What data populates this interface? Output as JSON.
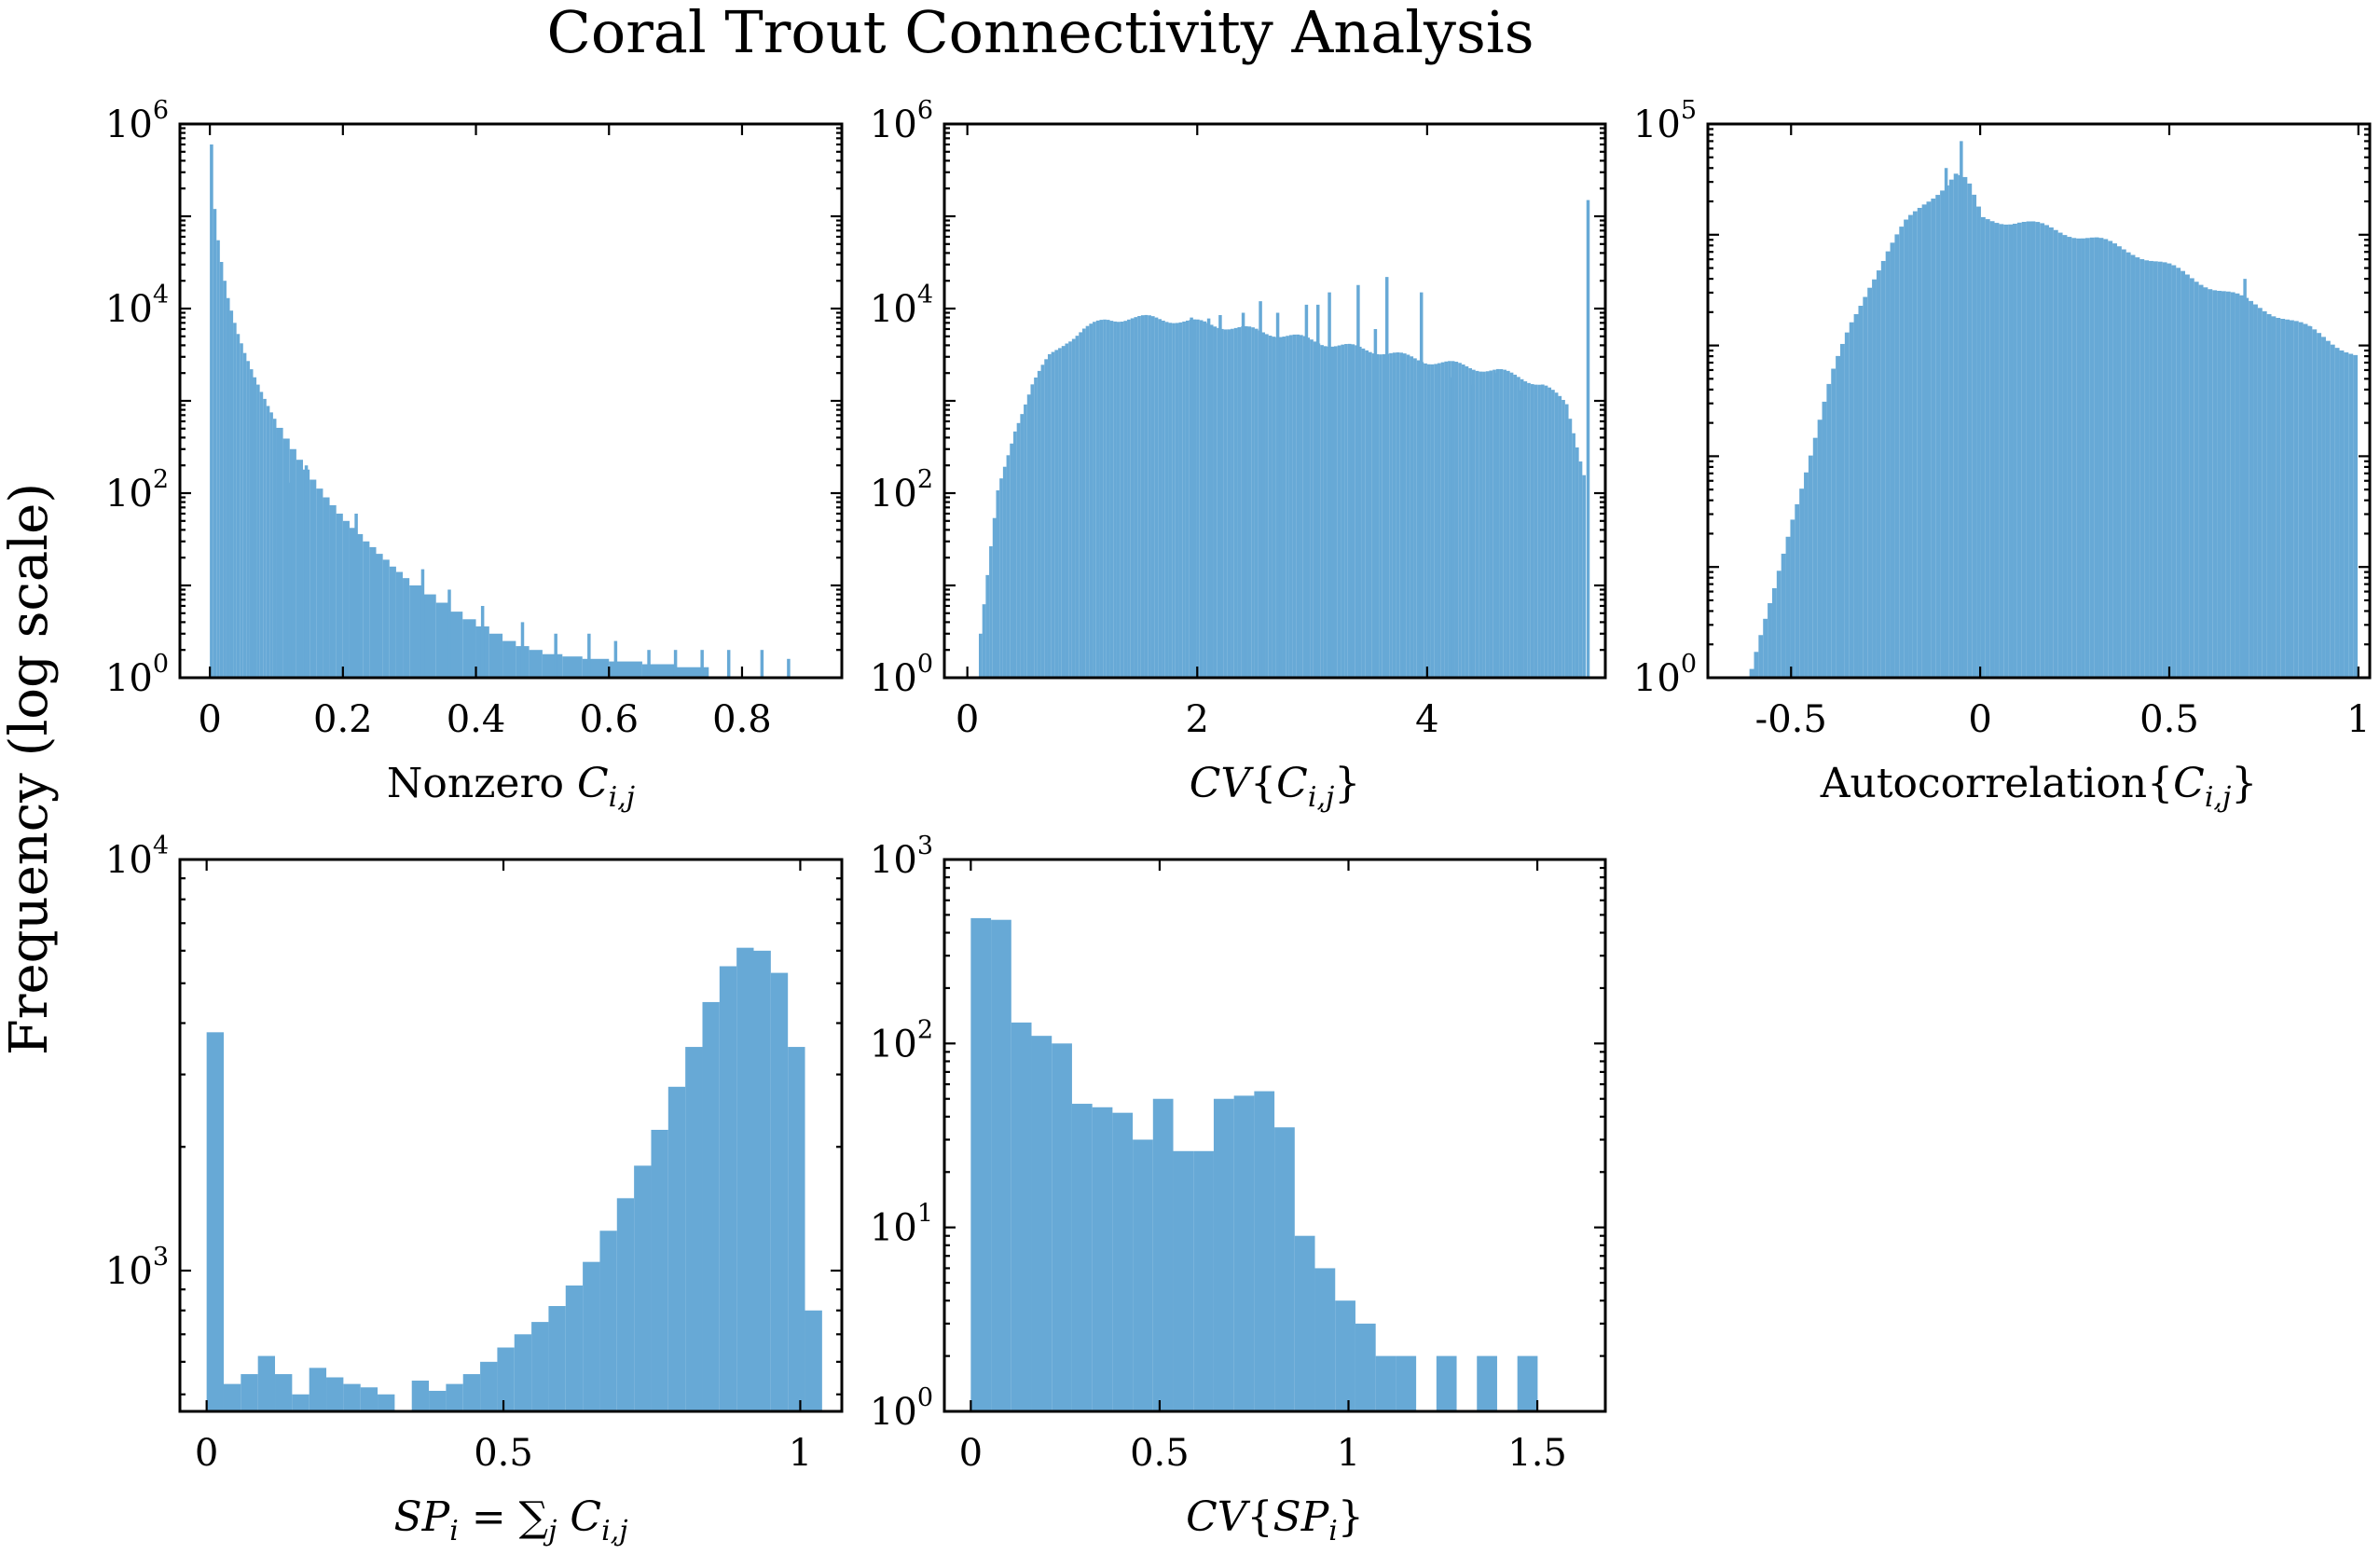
{
  "figure": {
    "title": "Coral Trout Connectivity Analysis",
    "ylabel": "Frequency (log scale)",
    "bar_color": "#67a9d6"
  },
  "chart_data": [
    {
      "id": "nonzero",
      "type": "bar",
      "xlabel": "Nonzero C_{i,j}",
      "xlabel_parts": [
        {
          "t": "Nonzero ",
          "i": false
        },
        {
          "t": "C",
          "i": true
        },
        {
          "t": "i,j",
          "i": true,
          "sub": true
        }
      ],
      "yscale": "log",
      "xlim": [
        -0.045,
        0.95
      ],
      "ylim_exp": [
        0,
        6
      ],
      "xticks": [
        0,
        0.2,
        0.4,
        0.6,
        0.8
      ],
      "xtick_labels": [
        "0",
        "0.2",
        "0.4",
        "0.6",
        "0.8"
      ],
      "yticks": [
        {
          "exp": 0,
          "base": "10",
          "sup": "0"
        },
        {
          "exp": 2,
          "base": "10",
          "sup": "2"
        },
        {
          "exp": 4,
          "base": "10",
          "sup": "4"
        },
        {
          "exp": 6,
          "base": "10",
          "sup": "6"
        }
      ],
      "bars": [
        [
          0.0,
          0.005,
          600000
        ],
        [
          0.005,
          0.01,
          120000
        ],
        [
          0.01,
          0.015,
          55000
        ],
        [
          0.015,
          0.02,
          32000
        ],
        [
          0.02,
          0.025,
          20000
        ],
        [
          0.025,
          0.03,
          13000
        ],
        [
          0.03,
          0.035,
          9500
        ],
        [
          0.035,
          0.04,
          7000
        ],
        [
          0.04,
          0.045,
          5300
        ],
        [
          0.045,
          0.05,
          4200
        ],
        [
          0.05,
          0.055,
          3300
        ],
        [
          0.055,
          0.06,
          2700
        ],
        [
          0.06,
          0.065,
          2200
        ],
        [
          0.065,
          0.07,
          1800
        ],
        [
          0.07,
          0.075,
          1500
        ],
        [
          0.075,
          0.08,
          1250
        ],
        [
          0.08,
          0.085,
          1050
        ],
        [
          0.085,
          0.09,
          880
        ],
        [
          0.09,
          0.095,
          750
        ],
        [
          0.095,
          0.1,
          640
        ],
        [
          0.1,
          0.11,
          510
        ],
        [
          0.11,
          0.12,
          390
        ],
        [
          0.12,
          0.13,
          300
        ],
        [
          0.13,
          0.14,
          230
        ],
        [
          0.14,
          0.15,
          180
        ],
        [
          0.15,
          0.16,
          140
        ],
        [
          0.16,
          0.17,
          112
        ],
        [
          0.17,
          0.18,
          90
        ],
        [
          0.18,
          0.19,
          74
        ],
        [
          0.19,
          0.2,
          60
        ],
        [
          0.2,
          0.21,
          50
        ],
        [
          0.21,
          0.22,
          42
        ],
        [
          0.22,
          0.23,
          36
        ],
        [
          0.23,
          0.24,
          30
        ],
        [
          0.24,
          0.25,
          26
        ],
        [
          0.25,
          0.26,
          22
        ],
        [
          0.26,
          0.27,
          19
        ],
        [
          0.27,
          0.28,
          16
        ],
        [
          0.28,
          0.29,
          14
        ],
        [
          0.29,
          0.3,
          12
        ],
        [
          0.3,
          0.32,
          10
        ],
        [
          0.32,
          0.34,
          8
        ],
        [
          0.34,
          0.36,
          6.5
        ],
        [
          0.36,
          0.38,
          5.2
        ],
        [
          0.38,
          0.4,
          4.3
        ],
        [
          0.4,
          0.42,
          3.6
        ],
        [
          0.42,
          0.44,
          3.0
        ],
        [
          0.44,
          0.46,
          2.5
        ],
        [
          0.46,
          0.48,
          2.2
        ],
        [
          0.48,
          0.5,
          2.0
        ],
        [
          0.5,
          0.53,
          1.8
        ],
        [
          0.53,
          0.56,
          1.7
        ],
        [
          0.56,
          0.6,
          1.6
        ],
        [
          0.6,
          0.65,
          1.5
        ],
        [
          0.65,
          0.7,
          1.4
        ],
        [
          0.7,
          0.75,
          1.3
        ]
      ],
      "spikes": [
        [
          0.145,
          200
        ],
        [
          0.12,
          130
        ],
        [
          0.22,
          60
        ],
        [
          0.32,
          15
        ],
        [
          0.36,
          9
        ],
        [
          0.41,
          6
        ],
        [
          0.47,
          4
        ],
        [
          0.52,
          3
        ],
        [
          0.57,
          3
        ],
        [
          0.61,
          2.5
        ],
        [
          0.66,
          2
        ],
        [
          0.7,
          2
        ],
        [
          0.74,
          2
        ],
        [
          0.78,
          2
        ],
        [
          0.83,
          2
        ],
        [
          0.87,
          1.6
        ]
      ]
    },
    {
      "id": "cv_cij",
      "type": "bar",
      "xlabel": "CV{C_{i,j}}",
      "xlabel_parts": [
        {
          "t": "CV",
          "i": true
        },
        {
          "t": "{",
          "i": false
        },
        {
          "t": "C",
          "i": true
        },
        {
          "t": "i,j",
          "i": true,
          "sub": true
        },
        {
          "t": "}",
          "i": false
        }
      ],
      "yscale": "log",
      "xlim": [
        -0.2,
        5.55
      ],
      "ylim_exp": [
        0,
        6
      ],
      "xticks": [
        0,
        2,
        4
      ],
      "xtick_labels": [
        "0",
        "2",
        "4"
      ],
      "yticks": [
        {
          "exp": 0,
          "base": "10",
          "sup": "0"
        },
        {
          "exp": 2,
          "base": "10",
          "sup": "2"
        },
        {
          "exp": 4,
          "base": "10",
          "sup": "4"
        },
        {
          "exp": 6,
          "base": "10",
          "sup": "6"
        }
      ],
      "bar_width": 0.03,
      "points": [
        [
          0.1,
          3
        ],
        [
          0.25,
          100
        ],
        [
          0.4,
          500
        ],
        [
          0.55,
          1500
        ],
        [
          0.7,
          3000
        ],
        [
          0.85,
          4500
        ],
        [
          1.0,
          6000
        ],
        [
          1.2,
          7500
        ],
        [
          1.4,
          8000
        ],
        [
          1.6,
          7800
        ],
        [
          1.8,
          7500
        ],
        [
          2.0,
          7000
        ],
        [
          2.2,
          6500
        ],
        [
          2.4,
          6000
        ],
        [
          2.6,
          5500
        ],
        [
          2.8,
          5000
        ],
        [
          3.0,
          4500
        ],
        [
          3.2,
          4000
        ],
        [
          3.4,
          3700
        ],
        [
          3.6,
          3400
        ],
        [
          3.8,
          3000
        ],
        [
          4.0,
          2700
        ],
        [
          4.2,
          2500
        ],
        [
          4.4,
          2300
        ],
        [
          4.6,
          2100
        ],
        [
          4.8,
          1800
        ],
        [
          5.0,
          1500
        ],
        [
          5.2,
          900
        ],
        [
          5.3,
          300
        ],
        [
          5.38,
          120
        ]
      ],
      "spikes": [
        [
          5.4,
          150000
        ],
        [
          4.8,
          1300
        ],
        [
          4.6,
          2000
        ],
        [
          4.2,
          1800
        ],
        [
          3.8,
          3000
        ],
        [
          3.65,
          22000
        ],
        [
          3.4,
          18000
        ],
        [
          3.95,
          15000
        ],
        [
          3.15,
          15000
        ],
        [
          3.05,
          11000
        ],
        [
          2.95,
          11000
        ],
        [
          2.55,
          12000
        ],
        [
          2.7,
          9000
        ],
        [
          2.4,
          9000
        ],
        [
          2.2,
          8500
        ],
        [
          2.1,
          7800
        ],
        [
          1.95,
          8000
        ],
        [
          4.4,
          1500
        ],
        [
          3.55,
          6000
        ]
      ]
    },
    {
      "id": "autocorr",
      "type": "bar",
      "xlabel": "Autocorrelation{C_{i,j}}",
      "xlabel_parts": [
        {
          "t": "Autocorrelation{",
          "i": false
        },
        {
          "t": "C",
          "i": true
        },
        {
          "t": "i,j",
          "i": true,
          "sub": true
        },
        {
          "t": "}",
          "i": false
        }
      ],
      "yscale": "log",
      "xlim": [
        -0.72,
        1.03
      ],
      "ylim_exp": [
        0,
        5
      ],
      "xticks": [
        -0.5,
        0,
        0.5,
        1
      ],
      "xtick_labels": [
        "-0.5",
        "0",
        "0.5",
        "1"
      ],
      "yticks": [
        {
          "exp": 0,
          "base": "10",
          "sup": "0"
        },
        {
          "exp": 5,
          "base": "10",
          "sup": "5"
        }
      ],
      "bar_width": 0.012,
      "points": [
        [
          -0.61,
          1.2
        ],
        [
          -0.55,
          6
        ],
        [
          -0.5,
          30
        ],
        [
          -0.45,
          120
        ],
        [
          -0.4,
          500
        ],
        [
          -0.35,
          1500
        ],
        [
          -0.3,
          3500
        ],
        [
          -0.25,
          7000
        ],
        [
          -0.2,
          13000
        ],
        [
          -0.15,
          20000
        ],
        [
          -0.1,
          28000
        ],
        [
          -0.07,
          35000
        ],
        [
          -0.04,
          30000
        ],
        [
          0.0,
          14000
        ],
        [
          0.1,
          13000
        ],
        [
          0.2,
          11000
        ],
        [
          0.3,
          9000
        ],
        [
          0.4,
          7000
        ],
        [
          0.5,
          5000
        ],
        [
          0.6,
          3500
        ],
        [
          0.7,
          2500
        ],
        [
          0.8,
          1800
        ],
        [
          0.9,
          1200
        ],
        [
          0.97,
          900
        ],
        [
          0.995,
          800
        ]
      ],
      "spikes": [
        [
          -0.05,
          70000
        ],
        [
          -0.09,
          40000
        ],
        [
          0.7,
          4000
        ],
        [
          0.87,
          1500
        ],
        [
          0.92,
          900
        ]
      ]
    },
    {
      "id": "sp",
      "type": "bar",
      "xlabel": "SP_i = ∑_j C_{i,j}",
      "xlabel_parts": [
        {
          "t": "SP",
          "i": true
        },
        {
          "t": "i",
          "i": true,
          "sub": true
        },
        {
          "t": " = ∑",
          "i": false
        },
        {
          "t": "j",
          "i": true,
          "sub": true
        },
        {
          "t": " C",
          "i": true
        },
        {
          "t": "i,j",
          "i": true,
          "sub": true
        }
      ],
      "yscale": "log",
      "xlim": [
        -0.045,
        1.07
      ],
      "ylim_exp": [
        2.6576,
        4
      ],
      "xticks": [
        0,
        0.5,
        1
      ],
      "xtick_labels": [
        "0",
        "0.5",
        "1"
      ],
      "yticks": [
        {
          "exp": 3,
          "base": "10",
          "sup": "3"
        },
        {
          "exp": 4,
          "base": "10",
          "sup": "4"
        }
      ],
      "bin_edges_start": 0,
      "bin_width": 0.0288,
      "values": [
        3800,
        530,
        560,
        620,
        560,
        500,
        580,
        550,
        530,
        520,
        500,
        450,
        540,
        510,
        530,
        560,
        600,
        650,
        700,
        750,
        820,
        920,
        1050,
        1250,
        1500,
        1800,
        2200,
        2800,
        3500,
        4500,
        5500,
        6100,
        6000,
        5300,
        3500,
        800
      ]
    },
    {
      "id": "cv_sp",
      "type": "bar",
      "xlabel": "CV{SP_i}",
      "xlabel_parts": [
        {
          "t": "CV",
          "i": true
        },
        {
          "t": "{",
          "i": false
        },
        {
          "t": "SP",
          "i": true
        },
        {
          "t": "i",
          "i": true,
          "sub": true
        },
        {
          "t": "}",
          "i": false
        }
      ],
      "yscale": "log",
      "xlim": [
        -0.07,
        1.68
      ],
      "ylim_exp": [
        0,
        3
      ],
      "xticks": [
        0,
        0.5,
        1,
        1.5
      ],
      "xtick_labels": [
        "0",
        "0.5",
        "1",
        "1.5"
      ],
      "yticks": [
        {
          "exp": 0,
          "base": "10",
          "sup": "0"
        },
        {
          "exp": 1,
          "base": "10",
          "sup": "1"
        },
        {
          "exp": 2,
          "base": "10",
          "sup": "2"
        },
        {
          "exp": 3,
          "base": "10",
          "sup": "3"
        }
      ],
      "bin_edges_start": 0,
      "bin_width": 0.0536,
      "values": [
        480,
        470,
        130,
        110,
        100,
        47,
        45,
        42,
        30,
        50,
        26,
        26,
        50,
        52,
        55,
        35,
        9,
        6,
        4,
        3,
        2,
        2,
        0,
        2,
        0,
        2,
        0,
        2,
        0,
        0,
        0
      ]
    }
  ]
}
